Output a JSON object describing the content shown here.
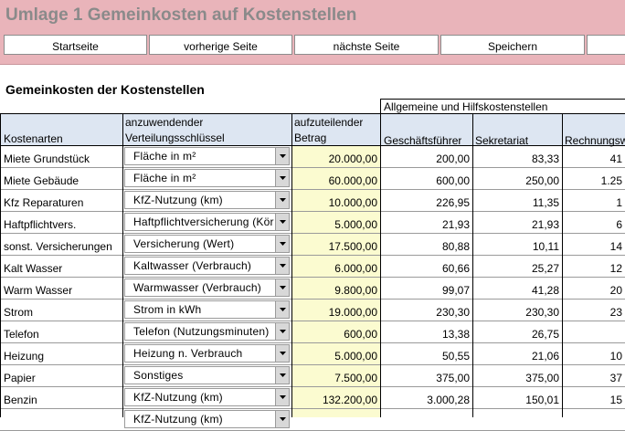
{
  "window": {
    "title": "Umlage 1 Gemeinkosten auf Kostenstellen"
  },
  "toolbar": {
    "buttons": [
      {
        "label": "Startseite"
      },
      {
        "label": "vorherige Seite"
      },
      {
        "label": "nächste Seite"
      },
      {
        "label": "Speichern"
      },
      {
        "label": ""
      }
    ]
  },
  "sheet": {
    "section_title": "Gemeinkosten der Kostenstellen",
    "group_header": "Allgemeine und Hilfskostenstellen",
    "headers": {
      "kostenarten": "Kostenarten",
      "schluessel_line1": "anzuwendender",
      "schluessel_line2": "Verteilungsschlüssel",
      "betrag_line1": "aufzuteilender",
      "betrag_line2": "Betrag",
      "col_gf": "Geschäftsführer",
      "col_sek": "Sekretariat",
      "col_rw": "Rechnungsw"
    },
    "rows": [
      {
        "kostenart": "Miete Grundstück",
        "schluessel": "Fläche in m²",
        "betrag": "20.000,00",
        "gf": "200,00",
        "sek": "83,33",
        "rw": "41"
      },
      {
        "kostenart": "Miete Gebäude",
        "schluessel": "Fläche in m²",
        "betrag": "60.000,00",
        "gf": "600,00",
        "sek": "250,00",
        "rw": "1.25"
      },
      {
        "kostenart": "Kfz Reparaturen",
        "schluessel": "KfZ-Nutzung (km)",
        "betrag": "10.000,00",
        "gf": "226,95",
        "sek": "11,35",
        "rw": "1"
      },
      {
        "kostenart": "Haftpflichtvers.",
        "schluessel": "Haftpflichtversicherung (Kör",
        "betrag": "5.000,00",
        "gf": "21,93",
        "sek": "21,93",
        "rw": "6"
      },
      {
        "kostenart": "sonst. Versicherungen",
        "schluessel": "Versicherung (Wert)",
        "betrag": "17.500,00",
        "gf": "80,88",
        "sek": "10,11",
        "rw": "14"
      },
      {
        "kostenart": "Kalt Wasser",
        "schluessel": "Kaltwasser (Verbrauch)",
        "betrag": "6.000,00",
        "gf": "60,66",
        "sek": "25,27",
        "rw": "12"
      },
      {
        "kostenart": "Warm Wasser",
        "schluessel": "Warmwasser (Verbrauch)",
        "betrag": "9.800,00",
        "gf": "99,07",
        "sek": "41,28",
        "rw": "20"
      },
      {
        "kostenart": "Strom",
        "schluessel": "Strom in kWh",
        "betrag": "19.000,00",
        "gf": "230,30",
        "sek": "230,30",
        "rw": "23"
      },
      {
        "kostenart": "Telefon",
        "schluessel": "Telefon (Nutzungsminuten)",
        "betrag": "600,00",
        "gf": "13,38",
        "sek": "26,75",
        "rw": ""
      },
      {
        "kostenart": "Heizung",
        "schluessel": "Heizung n. Verbrauch",
        "betrag": "5.000,00",
        "gf": "50,55",
        "sek": "21,06",
        "rw": "10"
      },
      {
        "kostenart": "Papier",
        "schluessel": "Sonstiges",
        "betrag": "7.500,00",
        "gf": "375,00",
        "sek": "375,00",
        "rw": "37"
      },
      {
        "kostenart": "Benzin",
        "schluessel": "KfZ-Nutzung (km)",
        "betrag": "132.200,00",
        "gf": "3.000,28",
        "sek": "150,01",
        "rw": "15"
      },
      {
        "kostenart": "",
        "schluessel": "KfZ-Nutzung (km)",
        "betrag": "",
        "gf": "",
        "sek": "",
        "rw": ""
      }
    ]
  },
  "icons": {
    "dropdown": "dropdown-arrow-icon"
  }
}
